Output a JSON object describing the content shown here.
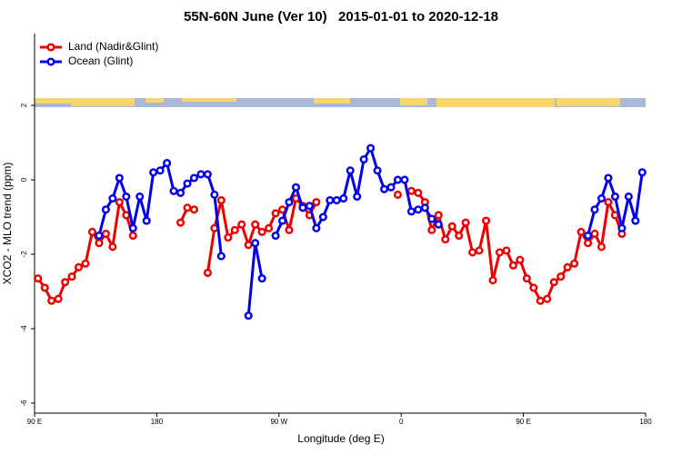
{
  "chart_data": {
    "type": "line",
    "title": "55N-60N June (Ver 10)   2015-01-01 to 2020-12-18",
    "x_label": "Longitude (deg E)",
    "y_label": "XCO2 - MLO trend (ppm)",
    "x": [
      92.5,
      97.5,
      102.5,
      107.5,
      112.5,
      117.5,
      122.5,
      127.5,
      132.5,
      137.5,
      142.5,
      147.5,
      152.5,
      157.5,
      162.5,
      167.5,
      172.5,
      177.5,
      182.5,
      187.5,
      192.5,
      197.5,
      202.5,
      207.5,
      212.5,
      217.5,
      222.5,
      227.5,
      232.5,
      237.5,
      242.5,
      247.5,
      252.5,
      257.5,
      262.5,
      267.5,
      272.5,
      277.5,
      282.5,
      287.5,
      292.5,
      297.5,
      302.5,
      307.5,
      312.5,
      317.5,
      322.5,
      327.5,
      332.5,
      337.5,
      342.5,
      347.5,
      352.5,
      357.5,
      362.5,
      367.5,
      372.5,
      377.5,
      382.5,
      387.5,
      392.5,
      397.5,
      402.5,
      407.5,
      412.5,
      417.5,
      422.5,
      427.5,
      432.5,
      437.5,
      442.5,
      447.5,
      452.5,
      457.5,
      462.5,
      467.5,
      472.5,
      477.5,
      482.5,
      487.5,
      492.5,
      497.5,
      502.5,
      507.5,
      512.5,
      517.5,
      522.5,
      527.5,
      532.5,
      537.5
    ],
    "series": [
      {
        "name": "Land (Nadir&Glint)",
        "color": "#ee0000",
        "values": [
          -2.65,
          -2.9,
          -3.25,
          -3.2,
          -2.75,
          -2.6,
          -2.35,
          -2.25,
          -1.4,
          -1.7,
          -1.45,
          -1.8,
          -0.6,
          -0.95,
          -1.5,
          null,
          null,
          null,
          null,
          null,
          null,
          -1.15,
          -0.75,
          -0.8,
          null,
          -2.5,
          -1.3,
          -0.55,
          -1.55,
          -1.35,
          -1.2,
          -1.75,
          -1.2,
          -1.4,
          -1.3,
          -0.9,
          -0.8,
          -1.35,
          -0.5,
          -0.7,
          -0.95,
          -0.6,
          null,
          null,
          null,
          null,
          null,
          null,
          null,
          null,
          null,
          null,
          null,
          -0.4,
          null,
          -0.3,
          -0.35,
          -0.6,
          -1.35,
          -0.95,
          -1.6,
          -1.25,
          -1.5,
          -1.15,
          -1.95,
          -1.9,
          -1.1,
          -2.7,
          -1.95,
          -1.9,
          -2.3,
          -2.15,
          -2.65,
          -2.9,
          -3.25,
          -3.2,
          -2.75,
          -2.6,
          -2.35,
          -2.25,
          -1.4,
          -1.7,
          -1.45,
          -1.8,
          -0.6,
          -0.95,
          -1.45,
          null,
          null,
          null
        ]
      },
      {
        "name": "Ocean (Glint)",
        "color": "#0000ee",
        "values": [
          null,
          null,
          null,
          null,
          null,
          null,
          null,
          null,
          null,
          -1.5,
          -0.8,
          -0.5,
          0.05,
          -0.45,
          -1.3,
          -0.45,
          -1.1,
          0.2,
          0.25,
          0.45,
          -0.3,
          -0.35,
          -0.1,
          0.05,
          0.15,
          0.15,
          -0.4,
          -2.05,
          null,
          null,
          null,
          -3.65,
          -1.7,
          -2.65,
          null,
          -1.5,
          -1.1,
          -0.6,
          -0.2,
          -0.75,
          -0.7,
          -1.3,
          -1.0,
          -0.55,
          -0.55,
          -0.5,
          0.25,
          -0.45,
          0.55,
          0.85,
          0.25,
          -0.25,
          -0.2,
          0.0,
          0.0,
          -0.85,
          -0.8,
          -0.75,
          -1.05,
          -1.2,
          null,
          null,
          null,
          null,
          null,
          null,
          null,
          null,
          null,
          null,
          null,
          null,
          null,
          null,
          null,
          null,
          null,
          null,
          null,
          null,
          null,
          -1.5,
          -0.8,
          -0.5,
          0.05,
          -0.45,
          -1.3,
          -0.45,
          -1.1,
          0.2
        ]
      }
    ],
    "xlim": [
      90,
      540
    ],
    "xticks": [
      {
        "value": 90,
        "label": "90 E"
      },
      {
        "value": 180,
        "label": "180"
      },
      {
        "value": 270,
        "label": "90 W"
      },
      {
        "value": 360,
        "label": "0"
      },
      {
        "value": 450,
        "label": "90 E"
      },
      {
        "value": 540,
        "label": "180"
      }
    ],
    "ylim": [
      -6.27,
      3.93
    ],
    "yticks": [
      -6,
      -4,
      -2,
      0,
      2
    ],
    "legend": "topleft"
  }
}
